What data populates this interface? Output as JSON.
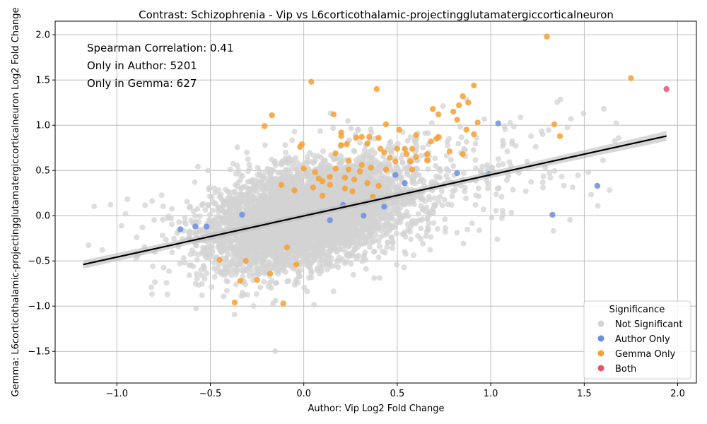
{
  "chart_data": {
    "type": "scatter",
    "title": "Contrast: Schizophrenia - Vip vs L6corticothalamic-projectingglutamatergiccorticalneuron",
    "xlabel": "Author: Vip Log2 Fold Change",
    "ylabel": "Gemma: L6corticothalamic-projectingglutamatergiccorticalneuron Log2 Fold Change",
    "xlim": [
      -1.33,
      2.1
    ],
    "ylim": [
      -1.85,
      2.15
    ],
    "xticks": [
      -1.0,
      -0.5,
      0.0,
      0.5,
      1.0,
      1.5,
      2.0
    ],
    "yticks": [
      -1.5,
      -1.0,
      -0.5,
      0.0,
      0.5,
      1.0,
      1.5,
      2.0
    ],
    "xtick_labels": [
      "−1.0",
      "−0.5",
      "0.0",
      "0.5",
      "1.0",
      "1.5",
      "2.0"
    ],
    "ytick_labels": [
      "−1.5",
      "−1.0",
      "−0.5",
      "0.0",
      "0.5",
      "1.0",
      "1.5",
      "2.0"
    ],
    "grid": true,
    "annotations": [
      "Spearman Correlation: 0.41",
      "Only in Author: 5201",
      "Only in Gemma: 627"
    ],
    "legend": {
      "title": "Significance",
      "position": "bottom-right",
      "entries": [
        {
          "label": "Not Significant",
          "color": "#d3d3d3"
        },
        {
          "label": "Author Only",
          "color": "#6b8ee0"
        },
        {
          "label": "Gemma Only",
          "color": "#f5a033"
        },
        {
          "label": "Both",
          "color": "#e0566e"
        }
      ]
    },
    "regression_line": {
      "x": [
        -1.18,
        1.94
      ],
      "y": [
        -0.54,
        0.88
      ],
      "color": "#000000"
    },
    "background_cloud": {
      "center": [
        0.0,
        0.0
      ],
      "corr": 0.41,
      "count": 5800
    },
    "series": [
      {
        "name": "Gemma Only",
        "color": "#f5a033",
        "points": [
          [
            1.3,
            1.98
          ],
          [
            1.75,
            1.52
          ],
          [
            0.04,
            1.48
          ],
          [
            0.91,
            1.44
          ],
          [
            0.39,
            1.4
          ],
          [
            0.85,
            1.32
          ],
          [
            0.83,
            1.22
          ],
          [
            0.88,
            1.25
          ],
          [
            -0.17,
            1.11
          ],
          [
            0.16,
            1.12
          ],
          [
            0.69,
            1.18
          ],
          [
            0.72,
            1.12
          ],
          [
            0.8,
            1.15
          ],
          [
            0.82,
            1.06
          ],
          [
            0.93,
            1.03
          ],
          [
            1.34,
            1.01
          ],
          [
            -0.21,
            0.99
          ],
          [
            0.44,
            1.01
          ],
          [
            0.51,
            0.95
          ],
          [
            0.87,
            0.95
          ],
          [
            0.91,
            0.9
          ],
          [
            1.37,
            0.88
          ],
          [
            0.2,
            0.92
          ],
          [
            0.2,
            0.88
          ],
          [
            0.28,
            0.86
          ],
          [
            0.31,
            0.87
          ],
          [
            0.35,
            0.87
          ],
          [
            0.4,
            0.86
          ],
          [
            0.6,
            0.89
          ],
          [
            0.68,
            0.82
          ],
          [
            0.71,
            0.85
          ],
          [
            0.72,
            0.87
          ],
          [
            -0.01,
            0.79
          ],
          [
            -0.02,
            0.76
          ],
          [
            0.2,
            0.78
          ],
          [
            0.23,
            0.79
          ],
          [
            0.34,
            0.8
          ],
          [
            0.41,
            0.74
          ],
          [
            0.5,
            0.74
          ],
          [
            0.54,
            0.74
          ],
          [
            0.58,
            0.74
          ],
          [
            0.66,
            0.68
          ],
          [
            0.78,
            0.71
          ],
          [
            0.85,
            0.68
          ],
          [
            0.17,
            0.69
          ],
          [
            0.43,
            0.7
          ],
          [
            0.46,
            0.64
          ],
          [
            0.55,
            0.68
          ],
          [
            0.6,
            0.65
          ],
          [
            0.24,
            0.61
          ],
          [
            0.31,
            0.56
          ],
          [
            0.36,
            0.53
          ],
          [
            0.49,
            0.6
          ],
          [
            0.57,
            0.6
          ],
          [
            0.66,
            0.61
          ],
          [
            0.0,
            0.52
          ],
          [
            0.06,
            0.48
          ],
          [
            0.14,
            0.43
          ],
          [
            0.17,
            0.52
          ],
          [
            0.24,
            0.51
          ],
          [
            0.3,
            0.49
          ],
          [
            0.44,
            0.51
          ],
          [
            0.58,
            0.51
          ],
          [
            0.1,
            0.38
          ],
          [
            0.14,
            0.34
          ],
          [
            0.22,
            0.42
          ],
          [
            0.27,
            0.4
          ],
          [
            0.34,
            0.36
          ],
          [
            0.05,
            0.31
          ],
          [
            0.22,
            0.3
          ],
          [
            0.4,
            0.33
          ],
          [
            -0.12,
            0.34
          ],
          [
            -0.05,
            0.28
          ],
          [
            0.1,
            0.22
          ],
          [
            0.26,
            0.27
          ],
          [
            0.37,
            0.21
          ],
          [
            -0.34,
            -0.72
          ],
          [
            -0.37,
            -0.96
          ],
          [
            -0.11,
            -0.97
          ],
          [
            -0.25,
            -0.71
          ],
          [
            -0.18,
            -0.64
          ],
          [
            -0.31,
            -0.5
          ],
          [
            -0.04,
            -0.54
          ],
          [
            -0.45,
            -0.49
          ],
          [
            -0.09,
            -0.35
          ],
          [
            0.08,
            0.41
          ]
        ]
      },
      {
        "name": "Author Only",
        "color": "#6b8ee0",
        "points": [
          [
            1.04,
            1.02
          ],
          [
            1.57,
            0.33
          ],
          [
            1.33,
            0.01
          ],
          [
            0.82,
            0.47
          ],
          [
            0.99,
            0.46
          ],
          [
            -0.66,
            -0.15
          ],
          [
            -0.58,
            -0.12
          ],
          [
            -0.52,
            -0.12
          ],
          [
            0.54,
            0.36
          ],
          [
            0.43,
            0.1
          ],
          [
            0.21,
            0.12
          ],
          [
            0.32,
            0.0
          ],
          [
            -0.33,
            0.01
          ],
          [
            0.49,
            0.45
          ],
          [
            0.14,
            -0.05
          ]
        ]
      },
      {
        "name": "Both",
        "color": "#e0566e",
        "points": [
          [
            1.94,
            1.4
          ]
        ]
      }
    ]
  }
}
